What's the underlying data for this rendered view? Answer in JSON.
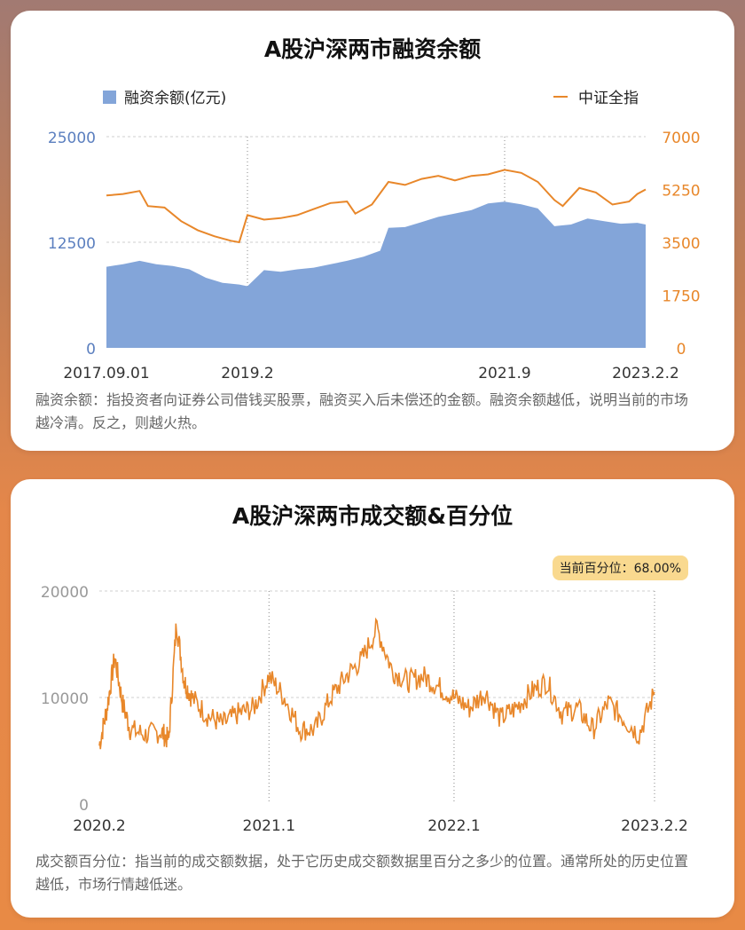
{
  "chart_data": [
    {
      "type": "area",
      "title": "A股沪深两市融资余额",
      "legend": [
        "融资余额(亿元)",
        "中证全指"
      ],
      "legend_placement": "top",
      "x_tick_labels": [
        "2017.09.01",
        "2019.2",
        "2021.9",
        "2023.2.2"
      ],
      "left_axis_ticks": [
        "25000",
        "12500",
        "0"
      ],
      "right_axis_ticks": [
        "7000",
        "5250",
        "3500",
        "1750",
        "0"
      ],
      "ylim_left": [
        0,
        25000
      ],
      "ylim_right": [
        0,
        7000
      ],
      "colors": {
        "area": "#83a5d9",
        "line": "#e8872a",
        "left_axis": "#5b7fbf",
        "right_axis": "#e8872a"
      },
      "series": [
        {
          "name": "融资余额(亿元)",
          "axis": "left",
          "x": [
            "2017-09",
            "2017-11",
            "2018-01",
            "2018-03",
            "2018-05",
            "2018-07",
            "2018-09",
            "2018-11",
            "2019-01",
            "2019-02",
            "2019-04",
            "2019-06",
            "2019-08",
            "2019-10",
            "2019-12",
            "2020-02",
            "2020-04",
            "2020-06",
            "2020-07",
            "2020-09",
            "2020-11",
            "2021-01",
            "2021-03",
            "2021-05",
            "2021-07",
            "2021-09",
            "2021-11",
            "2022-01",
            "2022-03",
            "2022-05",
            "2022-07",
            "2022-09",
            "2022-11",
            "2023-01",
            "2023-02"
          ],
          "values": [
            9600,
            9900,
            10300,
            9900,
            9700,
            9300,
            8300,
            7700,
            7500,
            7300,
            9200,
            9000,
            9300,
            9500,
            9900,
            10300,
            10800,
            11500,
            14200,
            14300,
            14900,
            15500,
            15900,
            16300,
            17100,
            17300,
            17000,
            16500,
            14400,
            14600,
            15300,
            15000,
            14700,
            14800,
            14600
          ]
        },
        {
          "name": "中证全指",
          "axis": "right",
          "x": [
            "2017-09",
            "2017-11",
            "2018-01",
            "2018-02",
            "2018-04",
            "2018-06",
            "2018-08",
            "2018-10",
            "2018-12",
            "2019-01",
            "2019-02",
            "2019-04",
            "2019-06",
            "2019-08",
            "2019-10",
            "2019-12",
            "2020-02",
            "2020-03",
            "2020-05",
            "2020-07",
            "2020-09",
            "2020-11",
            "2021-01",
            "2021-03",
            "2021-05",
            "2021-07",
            "2021-09",
            "2021-11",
            "2022-01",
            "2022-03",
            "2022-04",
            "2022-06",
            "2022-08",
            "2022-10",
            "2022-12",
            "2023-01",
            "2023-02"
          ],
          "values": [
            5050,
            5100,
            5200,
            4700,
            4650,
            4200,
            3900,
            3700,
            3550,
            3500,
            4400,
            4250,
            4300,
            4400,
            4600,
            4800,
            4850,
            4450,
            4750,
            5500,
            5400,
            5600,
            5700,
            5550,
            5700,
            5750,
            5900,
            5800,
            5500,
            4900,
            4700,
            5300,
            5150,
            4750,
            4850,
            5100,
            5250
          ]
        }
      ],
      "note": "融资余额：指投资者向证券公司借钱买股票，融资买入后未偿还的金额。融资余额越低，说明当前的市场越冷清。反之，则越火热。"
    },
    {
      "type": "line",
      "title": "A股沪深两市成交额&百分位",
      "badge": "当前百分位：68.00%",
      "x_tick_labels": [
        "2020.2",
        "2021.1",
        "2022.1",
        "2023.2.2"
      ],
      "y_ticks": [
        "20000",
        "10000",
        "0"
      ],
      "ylim": [
        0,
        20000
      ],
      "colors": {
        "line": "#e8872a",
        "axis": "#999999"
      },
      "series": [
        {
          "x": [
            "2020-02",
            "2020-02",
            "2020-03",
            "2020-03",
            "2020-04",
            "2020-05",
            "2020-06",
            "2020-06",
            "2020-07",
            "2020-07",
            "2020-08",
            "2020-09",
            "2020-10",
            "2020-11",
            "2020-12",
            "2021-01",
            "2021-02",
            "2021-03",
            "2021-04",
            "2021-05",
            "2021-06",
            "2021-07",
            "2021-08",
            "2021-09",
            "2021-10",
            "2021-11",
            "2021-12",
            "2022-01",
            "2022-02",
            "2022-03",
            "2022-04",
            "2022-05",
            "2022-06",
            "2022-07",
            "2022-08",
            "2022-09",
            "2022-10",
            "2022-11",
            "2022-12",
            "2023-01",
            "2023-02"
          ],
          "values": [
            5500,
            9000,
            13800,
            9500,
            7000,
            6500,
            6800,
            6000,
            17000,
            11500,
            10000,
            8300,
            7500,
            8500,
            9000,
            12000,
            10000,
            7000,
            7000,
            10000,
            12000,
            13500,
            16500,
            12500,
            11500,
            12000,
            11000,
            10000,
            9000,
            10500,
            8000,
            9000,
            10500,
            11500,
            8500,
            9000,
            7000,
            9500,
            8000,
            6500,
            10500
          ]
        }
      ],
      "note": "成交额百分位：指当前的成交额数据，处于它历史成交额数据里百分之多少的位置。通常所处的历史位置越低，市场行情越低迷。"
    }
  ]
}
